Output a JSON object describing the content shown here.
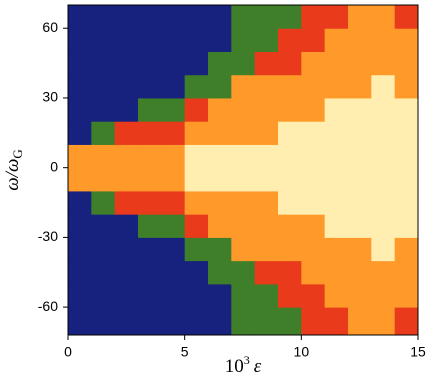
{
  "chart_data": {
    "type": "heatmap",
    "x_label": {
      "base": "10",
      "sup": "3",
      "var": "ε"
    },
    "y_label": {
      "base": "ω/ω",
      "sub": "G"
    },
    "xbins": [
      0,
      1,
      2,
      3,
      4,
      5,
      6,
      7,
      8,
      9,
      10,
      11,
      12,
      13,
      14,
      15
    ],
    "ybins": [
      -72,
      -60,
      -50,
      -40,
      -30,
      -20,
      -10,
      0,
      10,
      20,
      30,
      40,
      50,
      60,
      70
    ],
    "z": [
      [
        0,
        0,
        0,
        0,
        0,
        0,
        0,
        1,
        1,
        1,
        2,
        2,
        3,
        3,
        2
      ],
      [
        0,
        0,
        0,
        0,
        0,
        0,
        0,
        1,
        1,
        2,
        2,
        3,
        3,
        3,
        3
      ],
      [
        0,
        0,
        0,
        0,
        0,
        0,
        1,
        1,
        2,
        2,
        3,
        3,
        3,
        3,
        3
      ],
      [
        0,
        0,
        0,
        0,
        0,
        1,
        1,
        3,
        3,
        3,
        3,
        3,
        3,
        4,
        3
      ],
      [
        0,
        0,
        0,
        1,
        1,
        2,
        3,
        3,
        3,
        3,
        3,
        4,
        4,
        4,
        4
      ],
      [
        0,
        1,
        2,
        2,
        2,
        3,
        3,
        3,
        3,
        4,
        4,
        4,
        4,
        4,
        4
      ],
      [
        3,
        3,
        3,
        3,
        3,
        4,
        4,
        4,
        4,
        4,
        4,
        4,
        4,
        4,
        4
      ],
      [
        3,
        3,
        3,
        3,
        3,
        4,
        4,
        4,
        4,
        4,
        4,
        4,
        4,
        4,
        4
      ],
      [
        0,
        1,
        2,
        2,
        2,
        3,
        3,
        3,
        3,
        4,
        4,
        4,
        4,
        4,
        4
      ],
      [
        0,
        0,
        0,
        1,
        1,
        2,
        3,
        3,
        3,
        3,
        3,
        4,
        4,
        4,
        4
      ],
      [
        0,
        0,
        0,
        0,
        0,
        1,
        1,
        3,
        3,
        3,
        3,
        3,
        3,
        4,
        3
      ],
      [
        0,
        0,
        0,
        0,
        0,
        0,
        1,
        1,
        2,
        2,
        3,
        3,
        3,
        3,
        3
      ],
      [
        0,
        0,
        0,
        0,
        0,
        0,
        0,
        1,
        1,
        2,
        2,
        3,
        3,
        3,
        3
      ],
      [
        0,
        0,
        0,
        0,
        0,
        0,
        0,
        1,
        1,
        1,
        2,
        2,
        3,
        3,
        2
      ]
    ],
    "colors": [
      "#17217e",
      "#3f7f2a",
      "#ea3a1c",
      "#ff9a2a",
      "#ffeeb0"
    ],
    "xlim": [
      0,
      15
    ],
    "xticks": [
      0,
      5,
      10,
      15
    ],
    "ylim": [
      -72,
      70
    ],
    "yticks": [
      -60,
      -30,
      0,
      30,
      60
    ]
  }
}
